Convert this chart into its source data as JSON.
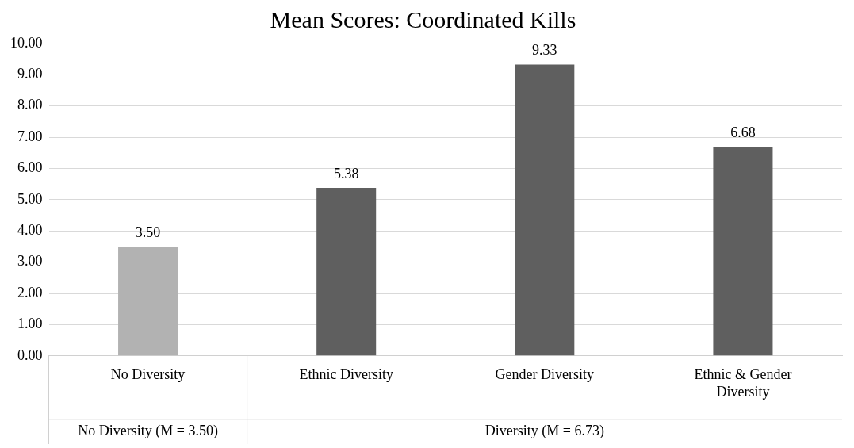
{
  "chart_data": {
    "type": "bar",
    "title": "Mean Scores: Coordinated Kills",
    "categories": [
      "No Diversity",
      "Ethnic Diversity",
      "Gender Diversity",
      "Ethnic & Gender Diversity"
    ],
    "values": [
      3.5,
      5.38,
      9.33,
      6.68
    ],
    "colors": [
      "#b2b2b2",
      "#5f5f5f",
      "#5f5f5f",
      "#5f5f5f"
    ],
    "value_labels": [
      "3.50",
      "5.38",
      "9.33",
      "6.68"
    ],
    "ylim": [
      0,
      10
    ],
    "yticks": [
      {
        "value": 0,
        "label": "0.00"
      },
      {
        "value": 1,
        "label": "1.00"
      },
      {
        "value": 2,
        "label": "2.00"
      },
      {
        "value": 3,
        "label": "3.00"
      },
      {
        "value": 4,
        "label": "4.00"
      },
      {
        "value": 5,
        "label": "5.00"
      },
      {
        "value": 6,
        "label": "6.00"
      },
      {
        "value": 7,
        "label": "7.00"
      },
      {
        "value": 8,
        "label": "8.00"
      },
      {
        "value": 9,
        "label": "9.00"
      },
      {
        "value": 10,
        "label": "10.00"
      }
    ],
    "grid": "y",
    "legend": false,
    "annotations": [
      "No Diversity (M = 3.50)",
      "Diversity (M = 6.73)"
    ]
  }
}
